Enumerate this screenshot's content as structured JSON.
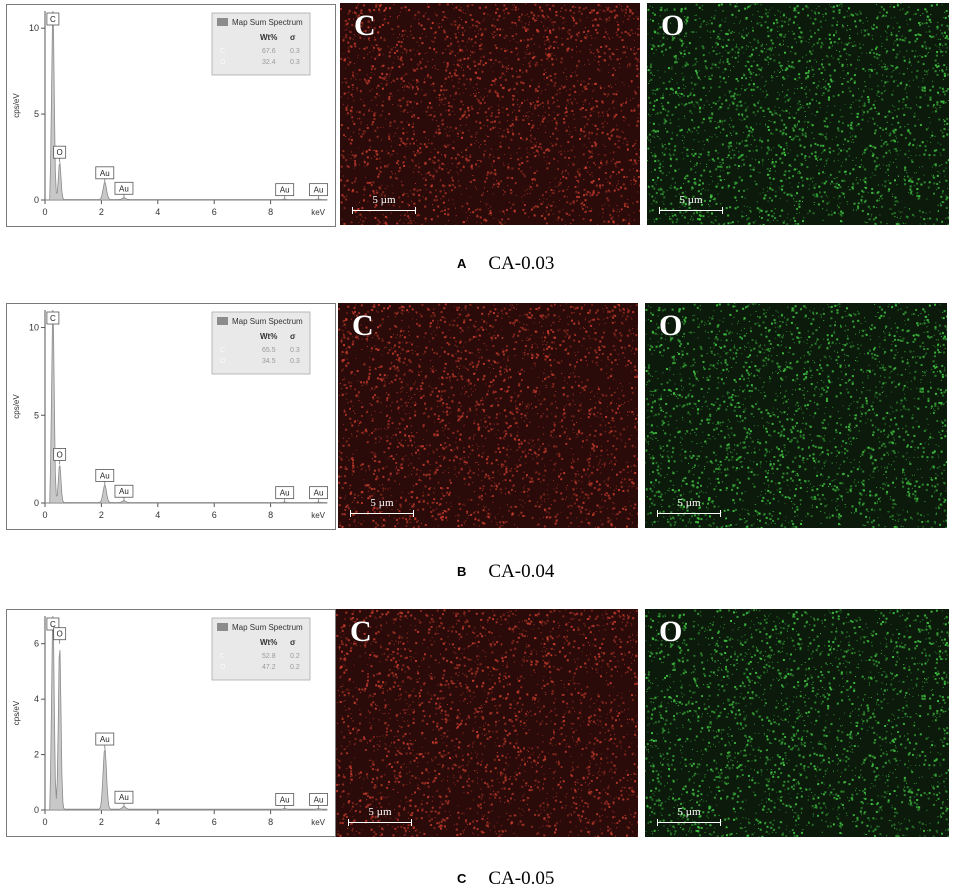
{
  "panels": [
    {
      "letter": "A",
      "sample": "CA-0.03",
      "legend": {
        "title": "Map Sum Spectrum",
        "col_wt": "Wt%",
        "col_sigma": "σ",
        "rows": [
          {
            "el": "C",
            "wt": "67.6",
            "sigma": "0.3"
          },
          {
            "el": "O",
            "wt": "32.4",
            "sigma": "0.3"
          }
        ]
      },
      "maps": [
        {
          "label": "C",
          "scale": "5 µm",
          "color": "#c0392b"
        },
        {
          "label": "O",
          "scale": "5 µm",
          "color": "#3ec03e"
        }
      ]
    },
    {
      "letter": "B",
      "sample": "CA-0.04",
      "legend": {
        "title": "Map Sum Spectrum",
        "col_wt": "Wt%",
        "col_sigma": "σ",
        "rows": [
          {
            "el": "C",
            "wt": "65.5",
            "sigma": "0.3"
          },
          {
            "el": "O",
            "wt": "34.5",
            "sigma": "0.3"
          }
        ]
      },
      "maps": [
        {
          "label": "C",
          "scale": "5 µm",
          "color": "#c0392b"
        },
        {
          "label": "O",
          "scale": "5 µm",
          "color": "#3ec03e"
        }
      ]
    },
    {
      "letter": "C",
      "sample": "CA-0.05",
      "legend": {
        "title": "Map Sum Spectrum",
        "col_wt": "Wt%",
        "col_sigma": "σ",
        "rows": [
          {
            "el": "C",
            "wt": "52.8",
            "sigma": "0.2"
          },
          {
            "el": "O",
            "wt": "47.2",
            "sigma": "0.2"
          }
        ]
      },
      "maps": [
        {
          "label": "C",
          "scale": "5 µm",
          "color": "#c0392b"
        },
        {
          "label": "O",
          "scale": "5 µm",
          "color": "#3ec03e"
        }
      ]
    }
  ],
  "chart_data": [
    {
      "type": "line",
      "xlabel": "keV",
      "ylabel": "cps/eV",
      "xlim": [
        0,
        10
      ],
      "ylim": [
        0,
        11
      ],
      "x_ticks": [
        0,
        2,
        4,
        6,
        8
      ],
      "y_ticks": [
        0,
        5,
        10
      ],
      "peaks": [
        {
          "label": "C",
          "x": 0.28,
          "y": 11
        },
        {
          "label": "O",
          "x": 0.52,
          "y": 2.2
        },
        {
          "label": "Au",
          "x": 2.12,
          "y": 1.0
        },
        {
          "label": "Au",
          "x": 2.8,
          "y": 0.1
        },
        {
          "label": "Au",
          "x": 8.5,
          "y": 0.02
        },
        {
          "label": "Au",
          "x": 9.7,
          "y": 0.02
        }
      ]
    },
    {
      "type": "line",
      "xlabel": "keV",
      "ylabel": "cps/eV",
      "xlim": [
        0,
        10
      ],
      "ylim": [
        0,
        11
      ],
      "x_ticks": [
        0,
        2,
        4,
        6,
        8
      ],
      "y_ticks": [
        0,
        5,
        10
      ],
      "peaks": [
        {
          "label": "C",
          "x": 0.28,
          "y": 11
        },
        {
          "label": "O",
          "x": 0.52,
          "y": 2.2
        },
        {
          "label": "Au",
          "x": 2.12,
          "y": 1.0
        },
        {
          "label": "Au",
          "x": 2.8,
          "y": 0.1
        },
        {
          "label": "Au",
          "x": 8.5,
          "y": 0.02
        },
        {
          "label": "Au",
          "x": 9.7,
          "y": 0.02
        }
      ]
    },
    {
      "type": "line",
      "xlabel": "keV",
      "ylabel": "cps/eV",
      "xlim": [
        0,
        10
      ],
      "ylim": [
        0,
        7
      ],
      "x_ticks": [
        0,
        2,
        4,
        6,
        8
      ],
      "y_ticks": [
        0,
        2,
        4,
        6
      ],
      "peaks": [
        {
          "label": "C",
          "x": 0.28,
          "y": 7
        },
        {
          "label": "O",
          "x": 0.52,
          "y": 6.0
        },
        {
          "label": "Au",
          "x": 2.12,
          "y": 2.2
        },
        {
          "label": "Au",
          "x": 2.8,
          "y": 0.1
        },
        {
          "label": "Au",
          "x": 8.5,
          "y": 0.02
        },
        {
          "label": "Au",
          "x": 9.7,
          "y": 0.02
        }
      ]
    }
  ]
}
